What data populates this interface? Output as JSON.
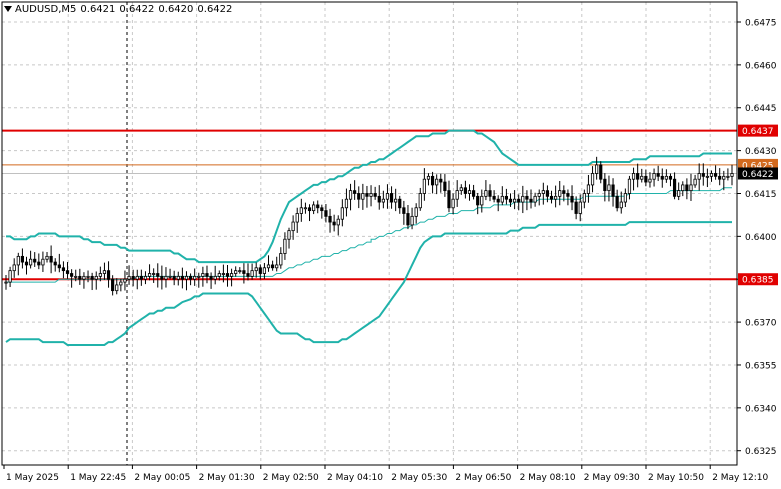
{
  "header": {
    "symbol": "AUDUSD,M5",
    "open": "0.6421",
    "high": "0.6422",
    "low": "0.6420",
    "close": "0.6422"
  },
  "colors": {
    "background": "#ffffff",
    "grid": "#c8c8c8",
    "candle": "#000000",
    "bollinger": "#20b2aa",
    "support_resistance": "#e00000",
    "level_0425": "#d2691e",
    "current_price_box": "#000000"
  },
  "chart_data": {
    "type": "candlestick",
    "symbol": "AUDUSD",
    "timeframe": "M5",
    "ylim": [
      0.632,
      0.6482
    ],
    "y_ticks": [
      "0.6475",
      "0.6460",
      "0.6445",
      "0.6430",
      "0.6415",
      "0.6400",
      "0.6385",
      "0.6370",
      "0.6355",
      "0.6340",
      "0.6325"
    ],
    "x_tick_labels": [
      "1 May 2025",
      "1 May 22:45",
      "2 May 00:05",
      "2 May 01:30",
      "2 May 02:50",
      "2 May 04:10",
      "2 May 05:30",
      "2 May 06:50",
      "2 May 08:10",
      "2 May 09:30",
      "2 May 10:50",
      "2 May 12:10"
    ],
    "horizontal_levels": [
      {
        "price": 0.6437,
        "label": "0.6437",
        "color": "#e00000",
        "style": "thick"
      },
      {
        "price": 0.6425,
        "label": "0.6425",
        "color": "#d2691e",
        "style": "thin"
      },
      {
        "price": 0.6385,
        "label": "0.6385",
        "color": "#e00000",
        "style": "thick"
      }
    ],
    "current_price": {
      "price": 0.6422,
      "label": "0.6422"
    },
    "period_separator_x_index": 2,
    "candles_close": [
      0.6384,
      0.6388,
      0.639,
      0.6393,
      0.6391,
      0.639,
      0.6392,
      0.6391,
      0.639,
      0.6392,
      0.6393,
      0.6391,
      0.639,
      0.6389,
      0.6388,
      0.6387,
      0.6386,
      0.6386,
      0.6385,
      0.6386,
      0.6386,
      0.6385,
      0.6386,
      0.6387,
      0.6388,
      0.6385,
      0.6381,
      0.6383,
      0.6384,
      0.6385,
      0.6386,
      0.6385,
      0.6386,
      0.6385,
      0.6386,
      0.6387,
      0.6387,
      0.6386,
      0.6385,
      0.6386,
      0.6386,
      0.6385,
      0.6386,
      0.6385,
      0.6386,
      0.6385,
      0.6386,
      0.6386,
      0.6387,
      0.6386,
      0.6385,
      0.6386,
      0.6387,
      0.6387,
      0.6386,
      0.6387,
      0.6388,
      0.6388,
      0.6387,
      0.6386,
      0.6388,
      0.6389,
      0.6387,
      0.6389,
      0.639,
      0.6389,
      0.639,
      0.6394,
      0.6399,
      0.6402,
      0.6405,
      0.6408,
      0.641,
      0.641,
      0.6409,
      0.6411,
      0.641,
      0.6409,
      0.6407,
      0.6405,
      0.6404,
      0.6406,
      0.641,
      0.6413,
      0.6416,
      0.6415,
      0.6413,
      0.6415,
      0.6414,
      0.6415,
      0.6414,
      0.6412,
      0.6413,
      0.6415,
      0.6412,
      0.6413,
      0.641,
      0.6408,
      0.6404,
      0.6407,
      0.641,
      0.6415,
      0.642,
      0.6421,
      0.6418,
      0.642,
      0.6419,
      0.6416,
      0.641,
      0.6413,
      0.6416,
      0.6417,
      0.6415,
      0.6416,
      0.6414,
      0.6411,
      0.6414,
      0.6416,
      0.6414,
      0.6413,
      0.6412,
      0.6414,
      0.6413,
      0.6412,
      0.6413,
      0.6412,
      0.6414,
      0.6413,
      0.6412,
      0.6414,
      0.6415,
      0.6416,
      0.6414,
      0.6413,
      0.6414,
      0.6416,
      0.6415,
      0.6414,
      0.6412,
      0.6408,
      0.6412,
      0.6415,
      0.6418,
      0.6422,
      0.6425,
      0.642,
      0.6416,
      0.6418,
      0.6414,
      0.641,
      0.6412,
      0.6415,
      0.642,
      0.6422,
      0.642,
      0.6421,
      0.6419,
      0.642,
      0.6422,
      0.6421,
      0.642,
      0.6421,
      0.642,
      0.6414,
      0.6416,
      0.6418,
      0.6416,
      0.6418,
      0.642,
      0.6422,
      0.6421,
      0.6421,
      0.6422,
      0.6421,
      0.642,
      0.6421,
      0.6421,
      0.6422
    ],
    "bollinger_upper": [
      0.64,
      0.64,
      0.6399,
      0.6399,
      0.6399,
      0.6399,
      0.64,
      0.64,
      0.6401,
      0.6401,
      0.6401,
      0.6401,
      0.6401,
      0.64,
      0.64,
      0.64,
      0.64,
      0.64,
      0.64,
      0.6399,
      0.6399,
      0.6398,
      0.6398,
      0.6398,
      0.6397,
      0.6397,
      0.6397,
      0.6397,
      0.6396,
      0.6396,
      0.6395,
      0.6395,
      0.6395,
      0.6395,
      0.6395,
      0.6395,
      0.6395,
      0.6395,
      0.6395,
      0.6395,
      0.6395,
      0.6394,
      0.6394,
      0.6393,
      0.6392,
      0.6392,
      0.6392,
      0.6391,
      0.6391,
      0.6391,
      0.6391,
      0.6391,
      0.6391,
      0.6391,
      0.6391,
      0.6391,
      0.6391,
      0.6391,
      0.6391,
      0.6391,
      0.6391,
      0.6391,
      0.6392,
      0.6393,
      0.6395,
      0.6398,
      0.6402,
      0.6406,
      0.6409,
      0.6412,
      0.6413,
      0.6414,
      0.6415,
      0.6416,
      0.6417,
      0.6418,
      0.6418,
      0.6419,
      0.6419,
      0.642,
      0.642,
      0.6421,
      0.6421,
      0.6422,
      0.6423,
      0.6424,
      0.6424,
      0.6425,
      0.6425,
      0.6426,
      0.6426,
      0.6427,
      0.6427,
      0.6428,
      0.6429,
      0.643,
      0.6431,
      0.6432,
      0.6433,
      0.6434,
      0.6435,
      0.6435,
      0.6435,
      0.6435,
      0.6436,
      0.6436,
      0.6436,
      0.6436,
      0.6437,
      0.6437,
      0.6437,
      0.6437,
      0.6437,
      0.6437,
      0.6437,
      0.6436,
      0.6436,
      0.6435,
      0.6434,
      0.6433,
      0.6431,
      0.6429,
      0.6428,
      0.6427,
      0.6426,
      0.6425,
      0.6425,
      0.6425,
      0.6425,
      0.6425,
      0.6425,
      0.6425,
      0.6425,
      0.6425,
      0.6425,
      0.6425,
      0.6425,
      0.6425,
      0.6425,
      0.6425,
      0.6425,
      0.6425,
      0.6425,
      0.6426,
      0.6426,
      0.6426,
      0.6426,
      0.6426,
      0.6426,
      0.6426,
      0.6426,
      0.6426,
      0.6426,
      0.6427,
      0.6427,
      0.6427,
      0.6427,
      0.6428,
      0.6428,
      0.6428,
      0.6428,
      0.6428,
      0.6428,
      0.6428,
      0.6428,
      0.6428,
      0.6428,
      0.6428,
      0.6428,
      0.6428,
      0.6429,
      0.6429,
      0.6429,
      0.6429,
      0.6429,
      0.6429,
      0.6429,
      0.6429
    ],
    "bollinger_middle": [
      0.6384,
      0.6384,
      0.6384,
      0.6384,
      0.6384,
      0.6384,
      0.6384,
      0.6384,
      0.6384,
      0.6384,
      0.6384,
      0.6384,
      0.6384,
      0.6385,
      0.6385,
      0.6385,
      0.6385,
      0.6385,
      0.6385,
      0.6385,
      0.6385,
      0.6385,
      0.6385,
      0.6385,
      0.6385,
      0.6385,
      0.6385,
      0.6385,
      0.6385,
      0.6385,
      0.6385,
      0.6385,
      0.6386,
      0.6386,
      0.6386,
      0.6386,
      0.6386,
      0.6386,
      0.6386,
      0.6386,
      0.6386,
      0.6386,
      0.6386,
      0.6386,
      0.6386,
      0.6386,
      0.6386,
      0.6386,
      0.6386,
      0.6386,
      0.6386,
      0.6386,
      0.6386,
      0.6386,
      0.6386,
      0.6386,
      0.6386,
      0.6386,
      0.6386,
      0.6386,
      0.6386,
      0.6386,
      0.6386,
      0.6386,
      0.6386,
      0.6386,
      0.6387,
      0.6387,
      0.6388,
      0.6389,
      0.6389,
      0.639,
      0.639,
      0.6391,
      0.6391,
      0.6392,
      0.6392,
      0.6393,
      0.6393,
      0.6393,
      0.6394,
      0.6394,
      0.6395,
      0.6395,
      0.6396,
      0.6396,
      0.6397,
      0.6397,
      0.6398,
      0.6398,
      0.6399,
      0.6399,
      0.64,
      0.64,
      0.6401,
      0.6401,
      0.6402,
      0.6402,
      0.6403,
      0.6403,
      0.6404,
      0.6404,
      0.6405,
      0.6405,
      0.6406,
      0.6406,
      0.6407,
      0.6407,
      0.6407,
      0.6408,
      0.6408,
      0.6408,
      0.6409,
      0.6409,
      0.6409,
      0.6409,
      0.641,
      0.641,
      0.641,
      0.641,
      0.6411,
      0.6411,
      0.6411,
      0.6411,
      0.6411,
      0.6412,
      0.6412,
      0.6412,
      0.6412,
      0.6412,
      0.6412,
      0.6413,
      0.6413,
      0.6413,
      0.6413,
      0.6413,
      0.6413,
      0.6413,
      0.6413,
      0.6413,
      0.6413,
      0.6413,
      0.6414,
      0.6414,
      0.6414,
      0.6414,
      0.6414,
      0.6414,
      0.6414,
      0.6414,
      0.6414,
      0.6414,
      0.6414,
      0.6415,
      0.6415,
      0.6415,
      0.6415,
      0.6415,
      0.6415,
      0.6415,
      0.6415,
      0.6415,
      0.6415,
      0.6416,
      0.6416,
      0.6416,
      0.6416,
      0.6416,
      0.6416,
      0.6416,
      0.6416,
      0.6416,
      0.6416,
      0.6416,
      0.6416,
      0.6416,
      0.6417,
      0.6417,
      0.6417
    ],
    "bollinger_lower": [
      0.6363,
      0.6364,
      0.6364,
      0.6364,
      0.6364,
      0.6364,
      0.6364,
      0.6364,
      0.6364,
      0.6363,
      0.6363,
      0.6363,
      0.6363,
      0.6363,
      0.6363,
      0.6362,
      0.6362,
      0.6362,
      0.6362,
      0.6362,
      0.6362,
      0.6362,
      0.6362,
      0.6362,
      0.6362,
      0.6363,
      0.6363,
      0.6364,
      0.6365,
      0.6366,
      0.6368,
      0.6369,
      0.637,
      0.6371,
      0.6372,
      0.6373,
      0.6373,
      0.6374,
      0.6374,
      0.6375,
      0.6375,
      0.6375,
      0.6376,
      0.6377,
      0.6378,
      0.6379,
      0.6379,
      0.638,
      0.638,
      0.638,
      0.638,
      0.638,
      0.638,
      0.638,
      0.638,
      0.638,
      0.638,
      0.638,
      0.638,
      0.6379,
      0.6377,
      0.6375,
      0.6373,
      0.6371,
      0.6369,
      0.6367,
      0.6366,
      0.6366,
      0.6366,
      0.6366,
      0.6366,
      0.6365,
      0.6364,
      0.6364,
      0.6363,
      0.6363,
      0.6363,
      0.6363,
      0.6363,
      0.6363,
      0.6363,
      0.6364,
      0.6364,
      0.6365,
      0.6366,
      0.6367,
      0.6368,
      0.6369,
      0.637,
      0.6371,
      0.6372,
      0.6374,
      0.6376,
      0.6378,
      0.638,
      0.6382,
      0.6384,
      0.6387,
      0.639,
      0.6393,
      0.6396,
      0.6398,
      0.6399,
      0.64,
      0.64,
      0.64,
      0.6401,
      0.6401,
      0.6401,
      0.6401,
      0.6401,
      0.6401,
      0.6401,
      0.6401,
      0.6401,
      0.6401,
      0.6401,
      0.6401,
      0.6401,
      0.6401,
      0.6401,
      0.6401,
      0.6402,
      0.6402,
      0.6402,
      0.6403,
      0.6403,
      0.6403,
      0.6403,
      0.6404,
      0.6404,
      0.6404,
      0.6404,
      0.6404,
      0.6404,
      0.6404,
      0.6404,
      0.6404,
      0.6404,
      0.6404,
      0.6404,
      0.6404,
      0.6404,
      0.6404,
      0.6404,
      0.6404,
      0.6404,
      0.6404,
      0.6404,
      0.6404,
      0.6405,
      0.6405,
      0.6405,
      0.6405,
      0.6405,
      0.6405,
      0.6405,
      0.6405,
      0.6405,
      0.6405,
      0.6405,
      0.6405,
      0.6405,
      0.6405,
      0.6405,
      0.6405,
      0.6405,
      0.6405,
      0.6405,
      0.6405,
      0.6405,
      0.6405,
      0.6405,
      0.6405,
      0.6405,
      0.6405
    ]
  }
}
